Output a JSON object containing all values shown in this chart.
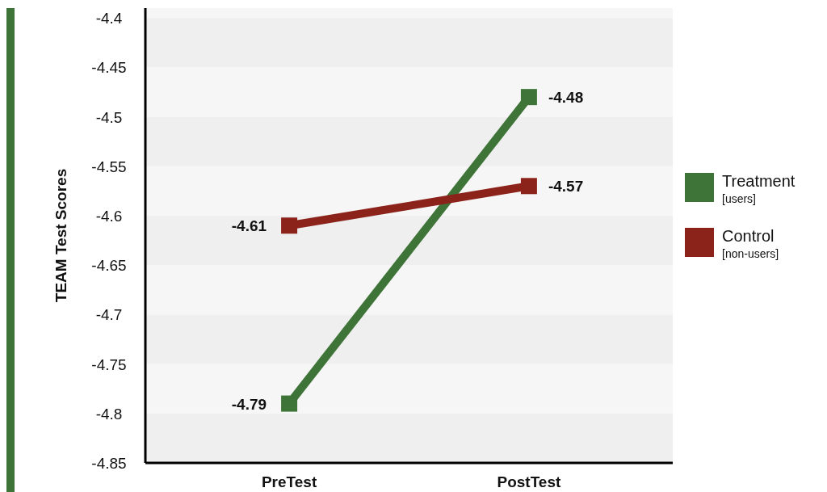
{
  "chart_data": {
    "type": "line",
    "ylabel": "TEAM Test Scores",
    "categories": [
      "PreTest",
      "PostTest"
    ],
    "series": [
      {
        "name": "Treatment\n[users]",
        "color": "#3e7437",
        "values": [
          -4.79,
          -4.48
        ]
      },
      {
        "name": "Control\n[non-users]",
        "color": "#8c231b",
        "values": [
          -4.61,
          -4.57
        ]
      }
    ],
    "ylim": [
      -4.85,
      -4.39
    ],
    "yticks": [
      -4.85,
      -4.8,
      -4.75,
      -4.7,
      -4.65,
      -4.6,
      -4.55,
      -4.5,
      -4.45,
      -4.4
    ],
    "legend": "right",
    "marker": "square",
    "data_labels": true
  }
}
